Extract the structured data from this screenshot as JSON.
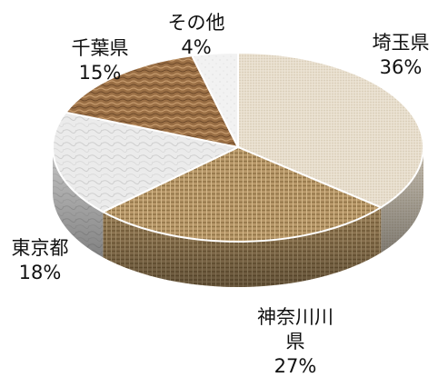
{
  "chart_data": {
    "type": "pie",
    "style": "3d",
    "title": "",
    "categories": [
      "埼玉県",
      "神奈川県",
      "東京都",
      "千葉県",
      "その他"
    ],
    "values": [
      36,
      27,
      18,
      15,
      4
    ],
    "labels": [
      {
        "name": "埼玉県",
        "lines": [
          "埼玉県"
        ],
        "percent": "36%"
      },
      {
        "name": "神奈川県",
        "lines": [
          "神奈川川",
          "県"
        ],
        "percent": "27%"
      },
      {
        "name": "東京都",
        "lines": [
          "東京都"
        ],
        "percent": "18%"
      },
      {
        "name": "千葉県",
        "lines": [
          "千葉県"
        ],
        "percent": "15%"
      },
      {
        "name": "その他",
        "lines": [
          "その他"
        ],
        "percent": "4%"
      }
    ],
    "colors": [
      "#e6dccb",
      "#b99a66",
      "#e9e9e9",
      "#9b7147",
      "#f1f1f1"
    ],
    "legend": "none",
    "start_angle_deg": 0
  }
}
